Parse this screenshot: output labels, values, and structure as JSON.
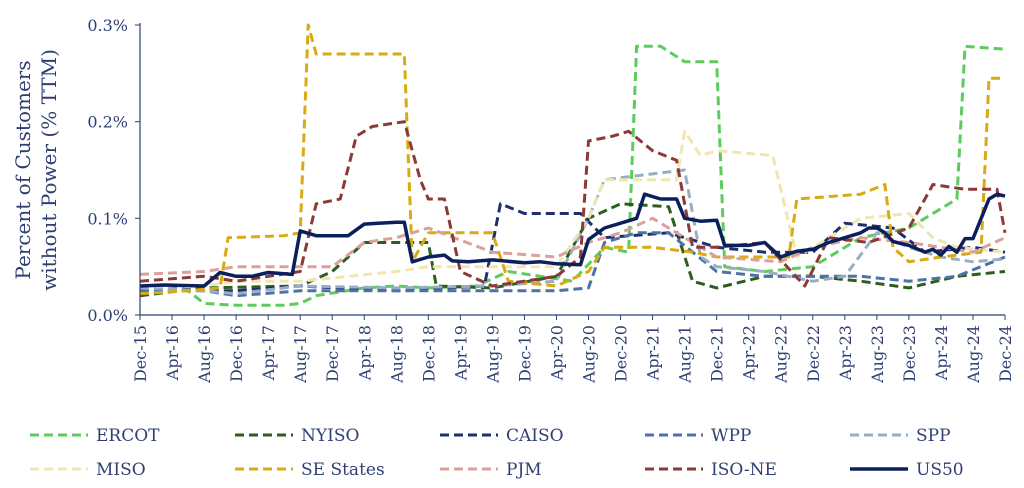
{
  "chart_data": {
    "type": "line",
    "ylabel_lines": [
      "Percent of Customers",
      "without Power (% TTM)"
    ],
    "ylim": [
      0,
      0.3
    ],
    "yticks": [
      {
        "value": 0.0,
        "label": "0.0%"
      },
      {
        "value": 0.1,
        "label": "0.1%"
      },
      {
        "value": 0.2,
        "label": "0.2%"
      },
      {
        "value": 0.3,
        "label": "0.3%"
      }
    ],
    "x_start": "Dec-15",
    "x_end": "Dec-24",
    "xticks": [
      "Dec-15",
      "Apr-16",
      "Aug-16",
      "Dec-16",
      "Apr-17",
      "Aug-17",
      "Dec-17",
      "Apr-18",
      "Aug-18",
      "Dec-18",
      "Apr-19",
      "Aug-19",
      "Dec-19",
      "Apr-20",
      "Aug-20",
      "Dec-20",
      "Apr-21",
      "Aug-21",
      "Dec-21",
      "Apr-22",
      "Aug-22",
      "Dec-22",
      "Apr-23",
      "Aug-23",
      "Dec-23",
      "Apr-24",
      "Aug-24",
      "Dec-24"
    ],
    "legend_position": "bottom",
    "colors": {
      "axis": "#2f3f73",
      "ERCOT": "#5ecb5e",
      "NYISO": "#2d5e1e",
      "CAISO": "#1f2f6e",
      "WPP": "#4c72a8",
      "SPP": "#98aec6",
      "MISO": "#f0e6b0",
      "SE States": "#d9aa12",
      "PJM": "#dba09a",
      "ISO-NE": "#8b3a36",
      "US50": "#0b1f5c"
    },
    "series": [
      {
        "name": "ERCOT",
        "points": [
          [
            "Dec-15",
            0.027
          ],
          [
            "Jun-16",
            0.025
          ],
          [
            "Aug-16",
            0.012
          ],
          [
            "Dec-16",
            0.01
          ],
          [
            "Jun-17",
            0.01
          ],
          [
            "Aug-17",
            0.012
          ],
          [
            "Oct-17",
            0.02
          ],
          [
            "Apr-18",
            0.028
          ],
          [
            "Aug-18",
            0.03
          ],
          [
            "Dec-18",
            0.028
          ],
          [
            "Jun-19",
            0.03
          ],
          [
            "Oct-19",
            0.045
          ],
          [
            "Feb-20",
            0.04
          ],
          [
            "Jun-20",
            0.035
          ],
          [
            "Oct-20",
            0.07
          ],
          [
            "Jan-21",
            0.065
          ],
          [
            "Feb-21",
            0.278
          ],
          [
            "May-21",
            0.278
          ],
          [
            "Aug-21",
            0.262
          ],
          [
            "Dec-21",
            0.262
          ],
          [
            "Jan-22",
            0.05
          ],
          [
            "Jun-22",
            0.045
          ],
          [
            "Dec-22",
            0.05
          ],
          [
            "Jun-23",
            0.08
          ],
          [
            "Dec-23",
            0.09
          ],
          [
            "Apr-24",
            0.11
          ],
          [
            "Jun-24",
            0.12
          ],
          [
            "Jul-24",
            0.278
          ],
          [
            "Dec-24",
            0.275
          ]
        ]
      },
      {
        "name": "NYISO",
        "points": [
          [
            "Dec-15",
            0.02
          ],
          [
            "Aug-16",
            0.028
          ],
          [
            "Aug-17",
            0.03
          ],
          [
            "Dec-17",
            0.045
          ],
          [
            "Feb-18",
            0.06
          ],
          [
            "Apr-18",
            0.075
          ],
          [
            "Aug-18",
            0.075
          ],
          [
            "Dec-18",
            0.075
          ],
          [
            "Jan-19",
            0.03
          ],
          [
            "Aug-19",
            0.028
          ],
          [
            "Apr-20",
            0.04
          ],
          [
            "Aug-20",
            0.1
          ],
          [
            "Dec-20",
            0.115
          ],
          [
            "Jun-21",
            0.112
          ],
          [
            "Sep-21",
            0.035
          ],
          [
            "Dec-21",
            0.028
          ],
          [
            "Jun-22",
            0.04
          ],
          [
            "Dec-22",
            0.04
          ],
          [
            "Jun-23",
            0.035
          ],
          [
            "Dec-23",
            0.028
          ],
          [
            "Jun-24",
            0.04
          ],
          [
            "Dec-24",
            0.045
          ]
        ]
      },
      {
        "name": "CAISO",
        "points": [
          [
            "Dec-15",
            0.03
          ],
          [
            "Aug-16",
            0.025
          ],
          [
            "Dec-16",
            0.025
          ],
          [
            "Aug-17",
            0.03
          ],
          [
            "Aug-18",
            0.025
          ],
          [
            "Jul-19",
            0.03
          ],
          [
            "Sep-19",
            0.115
          ],
          [
            "Dec-19",
            0.105
          ],
          [
            "Jul-20",
            0.105
          ],
          [
            "Oct-20",
            0.08
          ],
          [
            "Jun-21",
            0.085
          ],
          [
            "Dec-21",
            0.07
          ],
          [
            "Jun-22",
            0.065
          ],
          [
            "Dec-22",
            0.065
          ],
          [
            "Apr-23",
            0.095
          ],
          [
            "Oct-23",
            0.09
          ],
          [
            "Feb-24",
            0.065
          ],
          [
            "Aug-24",
            0.07
          ],
          [
            "Dec-24",
            0.065
          ]
        ]
      },
      {
        "name": "WPP",
        "points": [
          [
            "Dec-15",
            0.025
          ],
          [
            "Aug-16",
            0.025
          ],
          [
            "Dec-16",
            0.02
          ],
          [
            "Aug-17",
            0.025
          ],
          [
            "Aug-18",
            0.025
          ],
          [
            "Aug-19",
            0.025
          ],
          [
            "Apr-20",
            0.025
          ],
          [
            "Aug-20",
            0.028
          ],
          [
            "Oct-20",
            0.075
          ],
          [
            "Feb-21",
            0.085
          ],
          [
            "Jun-21",
            0.085
          ],
          [
            "Dec-21",
            0.045
          ],
          [
            "Jun-22",
            0.04
          ],
          [
            "Dec-22",
            0.04
          ],
          [
            "Jun-23",
            0.04
          ],
          [
            "Dec-23",
            0.035
          ],
          [
            "Jun-24",
            0.04
          ],
          [
            "Dec-24",
            0.06
          ]
        ]
      },
      {
        "name": "SPP",
        "points": [
          [
            "Dec-15",
            0.028
          ],
          [
            "Aug-16",
            0.025
          ],
          [
            "Dec-16",
            0.022
          ],
          [
            "Aug-17",
            0.03
          ],
          [
            "Aug-18",
            0.028
          ],
          [
            "Aug-19",
            0.03
          ],
          [
            "Apr-20",
            0.035
          ],
          [
            "Aug-20",
            0.1
          ],
          [
            "Oct-20",
            0.14
          ],
          [
            "Aug-21",
            0.15
          ],
          [
            "Oct-21",
            0.06
          ],
          [
            "Dec-21",
            0.05
          ],
          [
            "Jun-22",
            0.045
          ],
          [
            "Dec-22",
            0.035
          ],
          [
            "Apr-23",
            0.04
          ],
          [
            "Aug-23",
            0.085
          ],
          [
            "Dec-23",
            0.07
          ],
          [
            "Apr-24",
            0.06
          ],
          [
            "Aug-24",
            0.055
          ],
          [
            "Dec-24",
            0.058
          ]
        ]
      },
      {
        "name": "MISO",
        "points": [
          [
            "Dec-15",
            0.03
          ],
          [
            "Aug-16",
            0.03
          ],
          [
            "Dec-16",
            0.035
          ],
          [
            "Aug-17",
            0.035
          ],
          [
            "Aug-18",
            0.045
          ],
          [
            "Dec-18",
            0.05
          ],
          [
            "Aug-19",
            0.05
          ],
          [
            "Apr-20",
            0.05
          ],
          [
            "Aug-20",
            0.1
          ],
          [
            "Oct-20",
            0.14
          ],
          [
            "Apr-21",
            0.14
          ],
          [
            "Jul-21",
            0.14
          ],
          [
            "Aug-21",
            0.19
          ],
          [
            "Oct-21",
            0.165
          ],
          [
            "Dec-21",
            0.17
          ],
          [
            "Jul-22",
            0.165
          ],
          [
            "Oct-22",
            0.06
          ],
          [
            "Dec-22",
            0.07
          ],
          [
            "Jun-23",
            0.1
          ],
          [
            "Dec-23",
            0.105
          ],
          [
            "Mar-24",
            0.08
          ],
          [
            "Jun-24",
            0.07
          ],
          [
            "Dec-24",
            0.065
          ]
        ]
      },
      {
        "name": "SE States",
        "points": [
          [
            "Dec-15",
            0.022
          ],
          [
            "Jun-16",
            0.025
          ],
          [
            "Oct-16",
            0.028
          ],
          [
            "Nov-16",
            0.08
          ],
          [
            "Jun-17",
            0.082
          ],
          [
            "Aug-17",
            0.085
          ],
          [
            "Sep-17",
            0.3
          ],
          [
            "Oct-17",
            0.27
          ],
          [
            "Jul-18",
            0.27
          ],
          [
            "Sep-18",
            0.27
          ],
          [
            "Oct-18",
            0.055
          ],
          [
            "Dec-18",
            0.085
          ],
          [
            "Jun-19",
            0.085
          ],
          [
            "Aug-19",
            0.085
          ],
          [
            "Oct-19",
            0.035
          ],
          [
            "Apr-20",
            0.03
          ],
          [
            "Aug-20",
            0.045
          ],
          [
            "Oct-20",
            0.07
          ],
          [
            "Apr-21",
            0.07
          ],
          [
            "Sep-21",
            0.065
          ],
          [
            "Dec-21",
            0.06
          ],
          [
            "Jun-22",
            0.06
          ],
          [
            "Sep-22",
            0.06
          ],
          [
            "Oct-22",
            0.12
          ],
          [
            "Jun-23",
            0.125
          ],
          [
            "Sep-23",
            0.135
          ],
          [
            "Oct-23",
            0.07
          ],
          [
            "Dec-23",
            0.055
          ],
          [
            "Apr-24",
            0.06
          ],
          [
            "Sep-24",
            0.065
          ],
          [
            "Oct-24",
            0.245
          ],
          [
            "Dec-24",
            0.245
          ]
        ]
      },
      {
        "name": "PJM",
        "points": [
          [
            "Dec-15",
            0.042
          ],
          [
            "Aug-16",
            0.045
          ],
          [
            "Dec-16",
            0.05
          ],
          [
            "Aug-17",
            0.05
          ],
          [
            "Dec-17",
            0.05
          ],
          [
            "Apr-18",
            0.075
          ],
          [
            "Aug-18",
            0.08
          ],
          [
            "Dec-18",
            0.09
          ],
          [
            "Aug-19",
            0.065
          ],
          [
            "Apr-20",
            0.06
          ],
          [
            "Aug-20",
            0.075
          ],
          [
            "Dec-20",
            0.085
          ],
          [
            "Apr-21",
            0.1
          ],
          [
            "Aug-21",
            0.08
          ],
          [
            "Dec-21",
            0.06
          ],
          [
            "Aug-22",
            0.055
          ],
          [
            "Dec-22",
            0.07
          ],
          [
            "Jun-23",
            0.08
          ],
          [
            "Dec-23",
            0.075
          ],
          [
            "Aug-24",
            0.065
          ],
          [
            "Dec-24",
            0.08
          ]
        ]
      },
      {
        "name": "ISO-NE",
        "points": [
          [
            "Dec-15",
            0.035
          ],
          [
            "Aug-16",
            0.04
          ],
          [
            "Dec-16",
            0.035
          ],
          [
            "Aug-17",
            0.045
          ],
          [
            "Oct-17",
            0.115
          ],
          [
            "Jan-18",
            0.12
          ],
          [
            "Mar-18",
            0.185
          ],
          [
            "May-18",
            0.195
          ],
          [
            "Sep-18",
            0.2
          ],
          [
            "Nov-18",
            0.14
          ],
          [
            "Dec-18",
            0.12
          ],
          [
            "Feb-19",
            0.12
          ],
          [
            "Apr-19",
            0.045
          ],
          [
            "Aug-19",
            0.03
          ],
          [
            "Apr-20",
            0.04
          ],
          [
            "Jul-20",
            0.06
          ],
          [
            "Aug-20",
            0.18
          ],
          [
            "Nov-20",
            0.185
          ],
          [
            "Jan-21",
            0.19
          ],
          [
            "Apr-21",
            0.17
          ],
          [
            "Jul-21",
            0.16
          ],
          [
            "Sep-21",
            0.07
          ],
          [
            "Dec-21",
            0.07
          ],
          [
            "Jun-22",
            0.075
          ],
          [
            "Nov-22",
            0.03
          ],
          [
            "Feb-23",
            0.08
          ],
          [
            "Jul-23",
            0.075
          ],
          [
            "Dec-23",
            0.09
          ],
          [
            "Mar-24",
            0.135
          ],
          [
            "Jul-24",
            0.13
          ],
          [
            "Nov-24",
            0.13
          ],
          [
            "Dec-24",
            0.085
          ]
        ]
      },
      {
        "name": "US50",
        "points": [
          [
            "Dec-15",
            0.03
          ],
          [
            "Mar-16",
            0.031
          ],
          [
            "Aug-16",
            0.03
          ],
          [
            "Oct-16",
            0.044
          ],
          [
            "Dec-16",
            0.04
          ],
          [
            "Feb-17",
            0.04
          ],
          [
            "Apr-17",
            0.044
          ],
          [
            "Jul-17",
            0.042
          ],
          [
            "Aug-17",
            0.087
          ],
          [
            "Oct-17",
            0.082
          ],
          [
            "Feb-18",
            0.082
          ],
          [
            "Apr-18",
            0.094
          ],
          [
            "Aug-18",
            0.096
          ],
          [
            "Sep-18",
            0.096
          ],
          [
            "Oct-18",
            0.055
          ],
          [
            "Dec-18",
            0.06
          ],
          [
            "Feb-19",
            0.062
          ],
          [
            "Mar-19",
            0.056
          ],
          [
            "May-19",
            0.055
          ],
          [
            "Aug-19",
            0.057
          ],
          [
            "Dec-19",
            0.054
          ],
          [
            "Feb-20",
            0.055
          ],
          [
            "Apr-20",
            0.053
          ],
          [
            "Jul-20",
            0.052
          ],
          [
            "Aug-20",
            0.078
          ],
          [
            "Oct-20",
            0.09
          ],
          [
            "Dec-20",
            0.095
          ],
          [
            "Feb-21",
            0.1
          ],
          [
            "Mar-21",
            0.125
          ],
          [
            "May-21",
            0.12
          ],
          [
            "Jul-21",
            0.12
          ],
          [
            "Aug-21",
            0.1
          ],
          [
            "Oct-21",
            0.097
          ],
          [
            "Dec-21",
            0.098
          ],
          [
            "Jan-22",
            0.072
          ],
          [
            "Apr-22",
            0.072
          ],
          [
            "Jun-22",
            0.075
          ],
          [
            "Aug-22",
            0.06
          ],
          [
            "Oct-22",
            0.066
          ],
          [
            "Dec-22",
            0.068
          ],
          [
            "Feb-23",
            0.075
          ],
          [
            "Apr-23",
            0.08
          ],
          [
            "Jun-23",
            0.085
          ],
          [
            "Jul-23",
            0.09
          ],
          [
            "Aug-23",
            0.09
          ],
          [
            "Sep-23",
            0.085
          ],
          [
            "Oct-23",
            0.076
          ],
          [
            "Dec-23",
            0.072
          ],
          [
            "Feb-24",
            0.065
          ],
          [
            "Mar-24",
            0.068
          ],
          [
            "Apr-24",
            0.062
          ],
          [
            "May-24",
            0.071
          ],
          [
            "Jun-24",
            0.065
          ],
          [
            "Jul-24",
            0.079
          ],
          [
            "Aug-24",
            0.079
          ],
          [
            "Oct-24",
            0.12
          ],
          [
            "Nov-24",
            0.125
          ],
          [
            "Dec-24",
            0.123
          ]
        ]
      }
    ]
  }
}
